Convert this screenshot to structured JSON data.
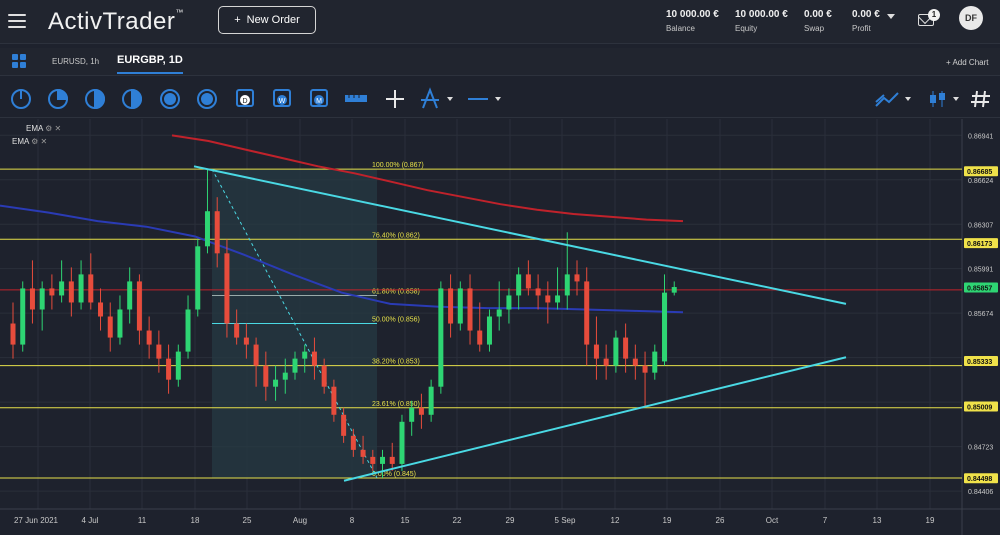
{
  "header": {
    "logo": "ActivTrader",
    "new_order_label": "New Order",
    "stats": [
      {
        "value": "10 000.00 €",
        "label": "Balance"
      },
      {
        "value": "10 000.00 €",
        "label": "Equity"
      },
      {
        "value": "0.00 €",
        "label": "Swap"
      },
      {
        "value": "0.00 €",
        "label": "Profit"
      }
    ],
    "notifications": "1",
    "avatar": "DF"
  },
  "tabs": [
    {
      "label": "EURUSD, 1h"
    },
    {
      "label": "EURGBP, 1D"
    }
  ],
  "add_chart_label": "+ Add Chart",
  "legend": [
    "EMA",
    "EMA"
  ],
  "colors": {
    "bull": "#2ed573",
    "bear": "#e74c3c",
    "ema_red": "#c0222b",
    "ema_blue": "#2a3bb5",
    "trend": "#4ad9e4",
    "fib": "#e6e04a",
    "accent": "#2f7fd6"
  },
  "icons": [
    "indicator-icon",
    "pie-chart-icon",
    "pie-chart-icon",
    "half-circle-icon",
    "timeframe-icon",
    "timeframe-icon",
    "calendar-day-icon",
    "calendar-week-icon",
    "calendar-month-icon",
    "ruler-icon",
    "crosshair-icon",
    "pitchfork-icon",
    "line-tool-icon",
    "chart-type-icon",
    "candlestick-icon",
    "hashtag-icon"
  ],
  "chart_data": {
    "type": "line",
    "symbol": "EURGBP",
    "timeframe": "1D",
    "x_labels": [
      "27 Jun 2021",
      "4 Jul",
      "11",
      "18",
      "25",
      "Aug",
      "8",
      "15",
      "22",
      "29",
      "5 Sep",
      "12",
      "19",
      "26",
      "Oct",
      "7",
      "13",
      "19"
    ],
    "price_axis_labels": [
      "0.86941",
      "0.86624",
      "0.86307",
      "0.85991",
      "0.85674",
      "0.84723",
      "0.84406"
    ],
    "price_tags": [
      {
        "value": "0.86685",
        "color": "#f0e24a"
      },
      {
        "value": "0.86173",
        "color": "#f0e24a"
      },
      {
        "value": "0.85857",
        "color": "#2ed573"
      },
      {
        "value": "0.85333",
        "color": "#f0e24a"
      },
      {
        "value": "0.85009",
        "color": "#f0e24a"
      },
      {
        "value": "0.84498",
        "color": "#f0e24a"
      }
    ],
    "fib_levels": [
      {
        "label": "100.00% (0.867)",
        "price": 0.867
      },
      {
        "label": "76.40% (0.862)",
        "price": 0.862
      },
      {
        "label": "61.80% (0.858)",
        "price": 0.858
      },
      {
        "label": "50.00% (0.856)",
        "price": 0.856
      },
      {
        "label": "38.20% (0.853)",
        "price": 0.853
      },
      {
        "label": "23.61% (0.850)",
        "price": 0.85
      },
      {
        "label": "0.00% (0.845)",
        "price": 0.845
      }
    ],
    "candles": [
      {
        "o": 0.856,
        "h": 0.8575,
        "l": 0.8535,
        "c": 0.8545
      },
      {
        "o": 0.8545,
        "h": 0.859,
        "l": 0.854,
        "c": 0.8585
      },
      {
        "o": 0.8585,
        "h": 0.8605,
        "l": 0.856,
        "c": 0.857
      },
      {
        "o": 0.857,
        "h": 0.859,
        "l": 0.8555,
        "c": 0.8585
      },
      {
        "o": 0.8585,
        "h": 0.8595,
        "l": 0.857,
        "c": 0.858
      },
      {
        "o": 0.858,
        "h": 0.8605,
        "l": 0.8575,
        "c": 0.859
      },
      {
        "o": 0.859,
        "h": 0.86,
        "l": 0.8565,
        "c": 0.8575
      },
      {
        "o": 0.8575,
        "h": 0.8605,
        "l": 0.857,
        "c": 0.8595
      },
      {
        "o": 0.8595,
        "h": 0.861,
        "l": 0.857,
        "c": 0.8575
      },
      {
        "o": 0.8575,
        "h": 0.8585,
        "l": 0.8555,
        "c": 0.8565
      },
      {
        "o": 0.8565,
        "h": 0.8575,
        "l": 0.854,
        "c": 0.855
      },
      {
        "o": 0.855,
        "h": 0.858,
        "l": 0.8545,
        "c": 0.857
      },
      {
        "o": 0.857,
        "h": 0.86,
        "l": 0.856,
        "c": 0.859
      },
      {
        "o": 0.859,
        "h": 0.8595,
        "l": 0.8545,
        "c": 0.8555
      },
      {
        "o": 0.8555,
        "h": 0.8565,
        "l": 0.8535,
        "c": 0.8545
      },
      {
        "o": 0.8545,
        "h": 0.8555,
        "l": 0.8525,
        "c": 0.8535
      },
      {
        "o": 0.8535,
        "h": 0.8545,
        "l": 0.851,
        "c": 0.852
      },
      {
        "o": 0.852,
        "h": 0.8545,
        "l": 0.8515,
        "c": 0.854
      },
      {
        "o": 0.854,
        "h": 0.858,
        "l": 0.8535,
        "c": 0.857
      },
      {
        "o": 0.857,
        "h": 0.862,
        "l": 0.8565,
        "c": 0.8615
      },
      {
        "o": 0.8615,
        "h": 0.867,
        "l": 0.861,
        "c": 0.864
      },
      {
        "o": 0.864,
        "h": 0.865,
        "l": 0.86,
        "c": 0.861
      },
      {
        "o": 0.861,
        "h": 0.862,
        "l": 0.855,
        "c": 0.856
      },
      {
        "o": 0.856,
        "h": 0.857,
        "l": 0.8545,
        "c": 0.855
      },
      {
        "o": 0.855,
        "h": 0.856,
        "l": 0.8535,
        "c": 0.8545
      },
      {
        "o": 0.8545,
        "h": 0.855,
        "l": 0.8515,
        "c": 0.853
      },
      {
        "o": 0.853,
        "h": 0.854,
        "l": 0.8505,
        "c": 0.8515
      },
      {
        "o": 0.8515,
        "h": 0.853,
        "l": 0.8505,
        "c": 0.852
      },
      {
        "o": 0.852,
        "h": 0.8535,
        "l": 0.851,
        "c": 0.8525
      },
      {
        "o": 0.8525,
        "h": 0.854,
        "l": 0.852,
        "c": 0.8535
      },
      {
        "o": 0.8535,
        "h": 0.8545,
        "l": 0.8525,
        "c": 0.854
      },
      {
        "o": 0.854,
        "h": 0.855,
        "l": 0.852,
        "c": 0.853
      },
      {
        "o": 0.853,
        "h": 0.8535,
        "l": 0.851,
        "c": 0.8515
      },
      {
        "o": 0.8515,
        "h": 0.852,
        "l": 0.849,
        "c": 0.8495
      },
      {
        "o": 0.8495,
        "h": 0.85,
        "l": 0.8475,
        "c": 0.848
      },
      {
        "o": 0.848,
        "h": 0.8485,
        "l": 0.8465,
        "c": 0.847
      },
      {
        "o": 0.847,
        "h": 0.848,
        "l": 0.846,
        "c": 0.8465
      },
      {
        "o": 0.8465,
        "h": 0.847,
        "l": 0.8455,
        "c": 0.846
      },
      {
        "o": 0.846,
        "h": 0.847,
        "l": 0.845,
        "c": 0.8465
      },
      {
        "o": 0.8465,
        "h": 0.8475,
        "l": 0.8455,
        "c": 0.846
      },
      {
        "o": 0.846,
        "h": 0.8495,
        "l": 0.8455,
        "c": 0.849
      },
      {
        "o": 0.849,
        "h": 0.8505,
        "l": 0.848,
        "c": 0.85
      },
      {
        "o": 0.85,
        "h": 0.851,
        "l": 0.8485,
        "c": 0.8495
      },
      {
        "o": 0.8495,
        "h": 0.852,
        "l": 0.849,
        "c": 0.8515
      },
      {
        "o": 0.8515,
        "h": 0.859,
        "l": 0.851,
        "c": 0.8585
      },
      {
        "o": 0.8585,
        "h": 0.8595,
        "l": 0.855,
        "c": 0.856
      },
      {
        "o": 0.856,
        "h": 0.859,
        "l": 0.8555,
        "c": 0.8585
      },
      {
        "o": 0.8585,
        "h": 0.8595,
        "l": 0.8545,
        "c": 0.8555
      },
      {
        "o": 0.8555,
        "h": 0.8575,
        "l": 0.854,
        "c": 0.8545
      },
      {
        "o": 0.8545,
        "h": 0.857,
        "l": 0.854,
        "c": 0.8565
      },
      {
        "o": 0.8565,
        "h": 0.859,
        "l": 0.8555,
        "c": 0.857
      },
      {
        "o": 0.857,
        "h": 0.8585,
        "l": 0.856,
        "c": 0.858
      },
      {
        "o": 0.858,
        "h": 0.86,
        "l": 0.857,
        "c": 0.8595
      },
      {
        "o": 0.8595,
        "h": 0.8605,
        "l": 0.858,
        "c": 0.8585
      },
      {
        "o": 0.8585,
        "h": 0.8595,
        "l": 0.857,
        "c": 0.858
      },
      {
        "o": 0.858,
        "h": 0.859,
        "l": 0.856,
        "c": 0.8575
      },
      {
        "o": 0.8575,
        "h": 0.86,
        "l": 0.857,
        "c": 0.858
      },
      {
        "o": 0.858,
        "h": 0.8625,
        "l": 0.857,
        "c": 0.8595
      },
      {
        "o": 0.8595,
        "h": 0.8605,
        "l": 0.858,
        "c": 0.859
      },
      {
        "o": 0.859,
        "h": 0.86,
        "l": 0.853,
        "c": 0.8545
      },
      {
        "o": 0.8545,
        "h": 0.8565,
        "l": 0.852,
        "c": 0.8535
      },
      {
        "o": 0.8535,
        "h": 0.8545,
        "l": 0.852,
        "c": 0.853
      },
      {
        "o": 0.853,
        "h": 0.8555,
        "l": 0.8525,
        "c": 0.855
      },
      {
        "o": 0.855,
        "h": 0.856,
        "l": 0.8525,
        "c": 0.8535
      },
      {
        "o": 0.8535,
        "h": 0.8545,
        "l": 0.852,
        "c": 0.853
      },
      {
        "o": 0.853,
        "h": 0.854,
        "l": 0.85,
        "c": 0.8525
      },
      {
        "o": 0.8525,
        "h": 0.8545,
        "l": 0.852,
        "c": 0.854
      },
      {
        "o": 0.8533,
        "h": 0.8595,
        "l": 0.853,
        "c": 0.8582
      },
      {
        "o": 0.8582,
        "h": 0.859,
        "l": 0.858,
        "c": 0.8586
      }
    ],
    "ema_red": [
      0.8694,
      0.869,
      0.8684,
      0.8678,
      0.8672,
      0.8667,
      0.8661,
      0.8655,
      0.865,
      0.8645,
      0.8641,
      0.8638,
      0.8636,
      0.8634,
      0.8633
    ],
    "ema_blue": [
      0.8644,
      0.8639,
      0.8633,
      0.8629,
      0.8622,
      0.8609,
      0.8595,
      0.8582,
      0.8574,
      0.8572,
      0.8571,
      0.8571,
      0.857,
      0.8569,
      0.8568
    ],
    "trendline_upper": [
      0.8672,
      0.8574
    ],
    "trendline_lower": [
      0.8448,
      0.8536
    ]
  }
}
